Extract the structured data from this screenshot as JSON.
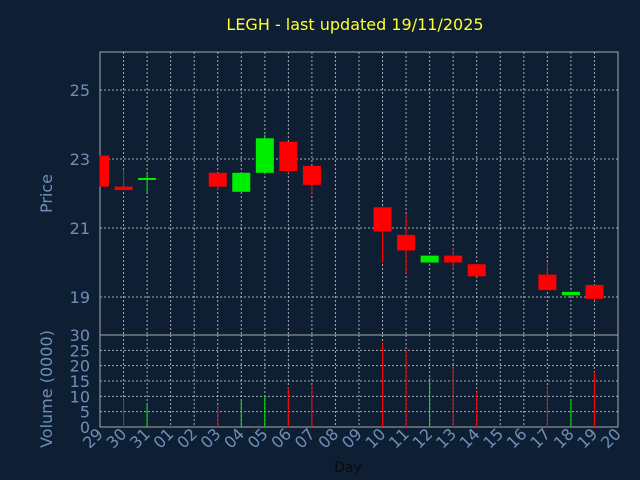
{
  "colors": {
    "background": "#0f1f33",
    "title": "#ffff33",
    "axis_text": "#6f8fb8",
    "grid": "#cfcfcf",
    "up": "#00ee00",
    "down": "#ff0000",
    "frame": "#a8a8a8"
  },
  "chart_data": {
    "type": "candlestick",
    "title": "LEGH - last updated 19/11/2025",
    "price_axis": {
      "label": "Price",
      "ticks": [
        19,
        21,
        23,
        25
      ],
      "ylim": [
        17.9,
        26.1
      ]
    },
    "volume_axis": {
      "label": "Volume (0000)",
      "ticks": [
        0,
        5,
        10,
        15,
        20,
        25,
        30
      ],
      "ylim": [
        0,
        30
      ]
    },
    "xlabel": "Day",
    "x_ticks": [
      "29",
      "30",
      "31",
      "01",
      "02",
      "03",
      "04",
      "05",
      "06",
      "07",
      "08",
      "09",
      "10",
      "11",
      "12",
      "13",
      "14",
      "15",
      "16",
      "17",
      "18",
      "19",
      "20"
    ],
    "grid": true,
    "candles": [
      {
        "day": "29",
        "open": 23.1,
        "high": 23.1,
        "low": 22.2,
        "close": 22.2,
        "volume": 0
      },
      {
        "day": "30",
        "open": 22.2,
        "high": 22.7,
        "low": 22.1,
        "close": 22.1,
        "volume": 9.5
      },
      {
        "day": "31",
        "open": 22.4,
        "high": 22.6,
        "low": 22.0,
        "close": 22.45,
        "volume": 7.5
      },
      {
        "day": "03",
        "open": 22.6,
        "high": 22.6,
        "low": 22.1,
        "close": 22.2,
        "volume": 7
      },
      {
        "day": "04",
        "open": 22.05,
        "high": 22.6,
        "low": 22.05,
        "close": 22.6,
        "volume": 8.5
      },
      {
        "day": "05",
        "open": 22.6,
        "high": 23.7,
        "low": 22.6,
        "close": 23.6,
        "volume": 10.5
      },
      {
        "day": "06",
        "open": 23.5,
        "high": 23.5,
        "low": 22.6,
        "close": 22.65,
        "volume": 13
      },
      {
        "day": "07",
        "open": 22.8,
        "high": 22.8,
        "low": 22.0,
        "close": 22.25,
        "volume": 13.5
      },
      {
        "day": "10",
        "open": 21.6,
        "high": 21.6,
        "low": 20.0,
        "close": 20.9,
        "volume": 27.5
      },
      {
        "day": "11",
        "open": 20.8,
        "high": 21.4,
        "low": 19.7,
        "close": 20.35,
        "volume": 25
      },
      {
        "day": "12",
        "open": 20.0,
        "high": 20.2,
        "low": 20.0,
        "close": 20.2,
        "volume": 16
      },
      {
        "day": "13",
        "open": 20.2,
        "high": 20.4,
        "low": 19.8,
        "close": 20.0,
        "volume": 19.5
      },
      {
        "day": "14",
        "open": 19.95,
        "high": 19.95,
        "low": 19.6,
        "close": 19.6,
        "volume": 11.5
      },
      {
        "day": "17",
        "open": 19.65,
        "high": 20.0,
        "low": 19.2,
        "close": 19.2,
        "volume": 13.5
      },
      {
        "day": "18",
        "open": 19.05,
        "high": 19.15,
        "low": 19.05,
        "close": 19.15,
        "volume": 9
      },
      {
        "day": "19",
        "open": 19.35,
        "high": 19.35,
        "low": 18.9,
        "close": 18.95,
        "volume": 18
      }
    ]
  }
}
